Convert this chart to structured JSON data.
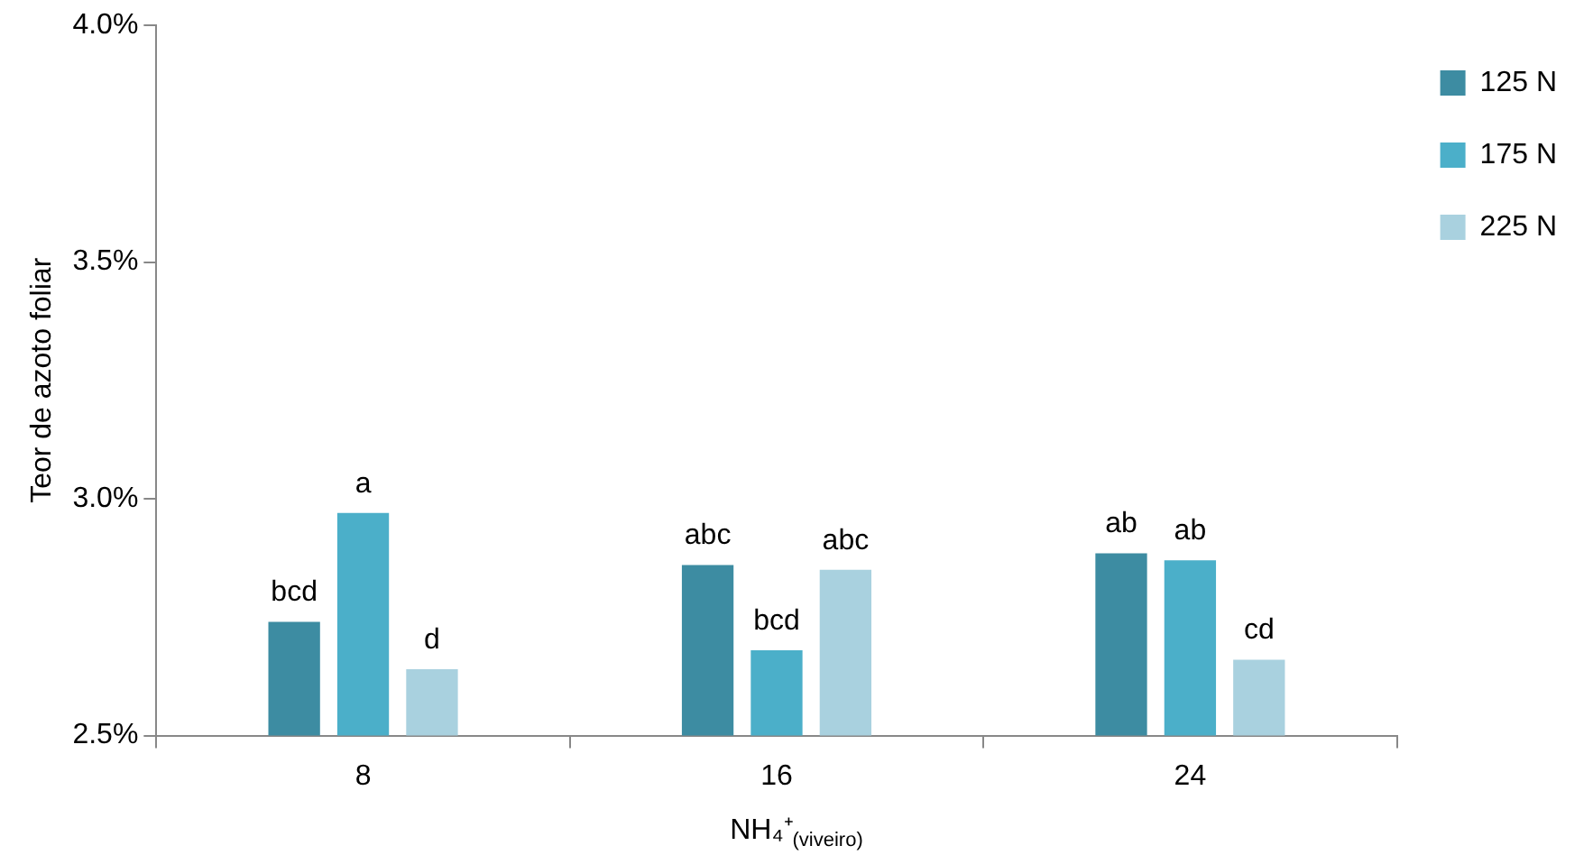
{
  "chart_data": {
    "type": "bar",
    "ylabel": "Teor de azoto foliar",
    "xlabel": "NH₄⁺$_{(viveiro)}$",
    "categories": [
      "8",
      "16",
      "24"
    ],
    "series": [
      {
        "name": "125 N",
        "color": "#3d8ca2",
        "values": [
          2.74,
          2.86,
          2.885
        ],
        "value_labels": [
          "bcd",
          "abc",
          "ab"
        ]
      },
      {
        "name": "175 N",
        "color": "#4bafc9",
        "values": [
          2.97,
          2.68,
          2.87
        ],
        "value_labels": [
          "a",
          "bcd",
          "ab"
        ]
      },
      {
        "name": "225 N",
        "color": "#a9d1df",
        "values": [
          2.64,
          2.85,
          2.66
        ],
        "value_labels": [
          "d",
          "abc",
          "cd"
        ]
      }
    ],
    "ylim": [
      2.5,
      4.0
    ],
    "yticks": [
      {
        "value": 2.5,
        "label": "2.5%"
      },
      {
        "value": 3.0,
        "label": "3.0%"
      },
      {
        "value": 3.5,
        "label": "3.5%"
      },
      {
        "value": 4.0,
        "label": "4.0%"
      }
    ],
    "grid": false,
    "legend": "top right"
  }
}
